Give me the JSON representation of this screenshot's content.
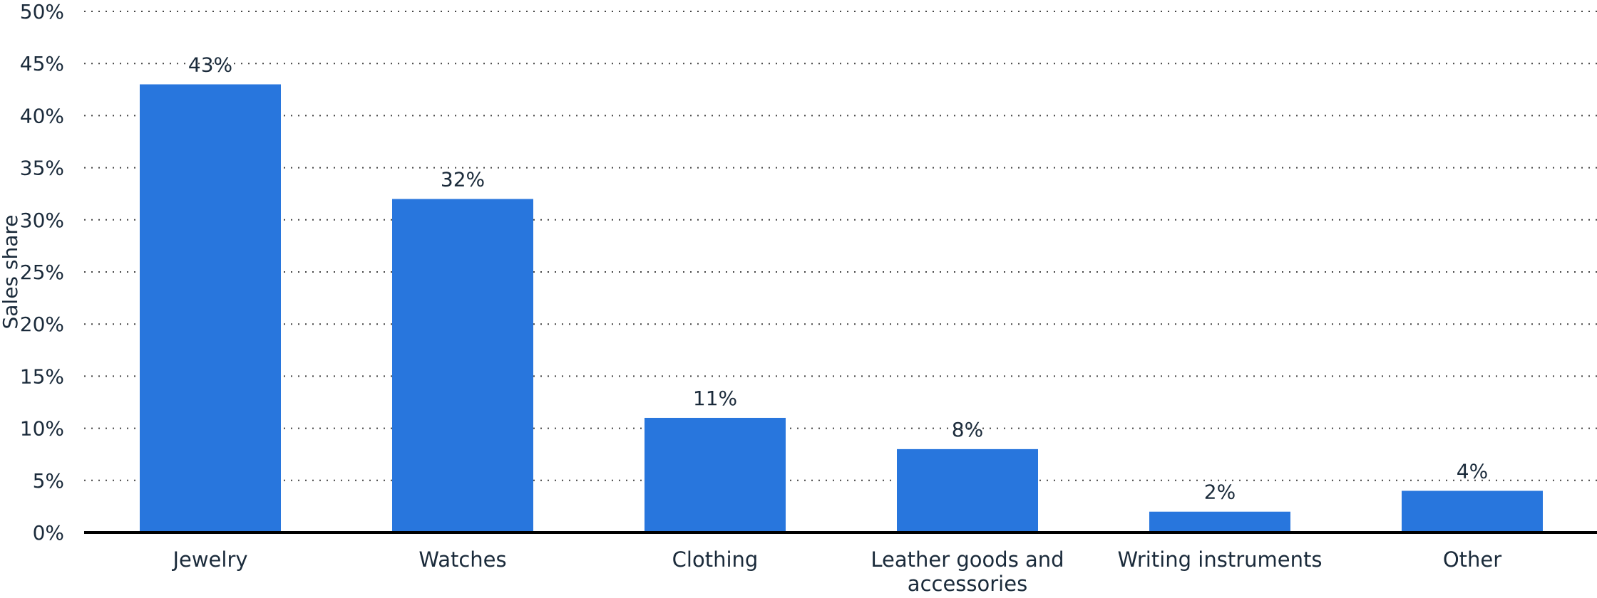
{
  "chart_data": {
    "type": "bar",
    "categories": [
      "Jewelry",
      "Watches",
      "Clothing",
      "Leather goods and accessories",
      "Writing instruments",
      "Other"
    ],
    "category_lines": [
      [
        "Jewelry"
      ],
      [
        "Watches"
      ],
      [
        "Clothing"
      ],
      [
        "Leather goods and",
        "accessories"
      ],
      [
        "Writing instruments"
      ],
      [
        "Other"
      ]
    ],
    "values": [
      43,
      32,
      11,
      8,
      2,
      4
    ],
    "value_labels": [
      "43%",
      "32%",
      "11%",
      "8%",
      "2%",
      "4%"
    ],
    "ylabel": "Sales share",
    "ylim": [
      0,
      50
    ],
    "yticks": [
      0,
      5,
      10,
      15,
      20,
      25,
      30,
      35,
      40,
      45,
      50
    ],
    "ytick_labels": [
      "0%",
      "5%",
      "10%",
      "15%",
      "20%",
      "25%",
      "30%",
      "35%",
      "40%",
      "45%",
      "50%"
    ],
    "grid": true,
    "bar_color": "#2876dd"
  }
}
